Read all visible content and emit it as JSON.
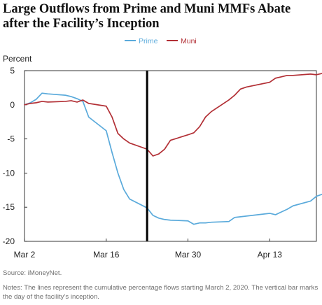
{
  "title_lines": [
    "Large Outflows from Prime and Muni MMFs Abate",
    "after the Facility’s Inception"
  ],
  "source": "Source: iMoneyNet.",
  "notes": "Notes: The lines represent the cumulative percentage flows starting March 2, 2020. The vertical bar marks the day of the facility’s inception.",
  "chart_data": {
    "type": "line",
    "title": "Large Outflows from Prime and Muni MMFs Abate after the Facility’s Inception",
    "xlabel": "",
    "ylabel": "Percent",
    "ylim": [
      -20,
      5
    ],
    "yticks": [
      5,
      0,
      -5,
      -10,
      -15,
      -20
    ],
    "xlim": [
      "2020-03-02",
      "2020-04-21"
    ],
    "xticks": [
      {
        "label": "Mar 2",
        "date": "2020-03-02"
      },
      {
        "label": "Mar 16",
        "date": "2020-03-16"
      },
      {
        "label": "Mar 30",
        "date": "2020-03-30"
      },
      {
        "label": "Apr 13",
        "date": "2020-04-13"
      }
    ],
    "grid": false,
    "legend_position": "top-center",
    "vertical_marker": {
      "date": "2020-03-23",
      "color": "#000000"
    },
    "series": [
      {
        "name": "Prime",
        "color": "#5aaadb",
        "points": [
          [
            "2020-03-02",
            0.0
          ],
          [
            "2020-03-03",
            0.3
          ],
          [
            "2020-03-04",
            0.8
          ],
          [
            "2020-03-05",
            1.7
          ],
          [
            "2020-03-06",
            1.6
          ],
          [
            "2020-03-09",
            1.4
          ],
          [
            "2020-03-10",
            1.2
          ],
          [
            "2020-03-11",
            0.9
          ],
          [
            "2020-03-12",
            0.5
          ],
          [
            "2020-03-13",
            -1.8
          ],
          [
            "2020-03-16",
            -3.8
          ],
          [
            "2020-03-17",
            -7.0
          ],
          [
            "2020-03-18",
            -10.0
          ],
          [
            "2020-03-19",
            -12.4
          ],
          [
            "2020-03-20",
            -13.8
          ],
          [
            "2020-03-23",
            -15.1
          ],
          [
            "2020-03-24",
            -16.2
          ],
          [
            "2020-03-25",
            -16.6
          ],
          [
            "2020-03-26",
            -16.8
          ],
          [
            "2020-03-27",
            -16.9
          ],
          [
            "2020-03-30",
            -17.0
          ],
          [
            "2020-03-31",
            -17.5
          ],
          [
            "2020-04-01",
            -17.3
          ],
          [
            "2020-04-02",
            -17.3
          ],
          [
            "2020-04-03",
            -17.2
          ],
          [
            "2020-04-06",
            -17.1
          ],
          [
            "2020-04-07",
            -16.5
          ],
          [
            "2020-04-08",
            -16.4
          ],
          [
            "2020-04-09",
            -16.3
          ],
          [
            "2020-04-13",
            -15.9
          ],
          [
            "2020-04-14",
            -16.1
          ],
          [
            "2020-04-15",
            -15.7
          ],
          [
            "2020-04-16",
            -15.3
          ],
          [
            "2020-04-17",
            -14.8
          ],
          [
            "2020-04-20",
            -14.1
          ],
          [
            "2020-04-21",
            -13.4
          ],
          [
            "2020-04-22",
            -13.1
          ]
        ]
      },
      {
        "name": "Muni",
        "color": "#b22f35",
        "points": [
          [
            "2020-03-02",
            0.0
          ],
          [
            "2020-03-03",
            0.2
          ],
          [
            "2020-03-04",
            0.3
          ],
          [
            "2020-03-05",
            0.5
          ],
          [
            "2020-03-06",
            0.4
          ],
          [
            "2020-03-09",
            0.5
          ],
          [
            "2020-03-10",
            0.6
          ],
          [
            "2020-03-11",
            0.4
          ],
          [
            "2020-03-12",
            0.7
          ],
          [
            "2020-03-13",
            0.2
          ],
          [
            "2020-03-16",
            -0.2
          ],
          [
            "2020-03-17",
            -1.8
          ],
          [
            "2020-03-18",
            -4.2
          ],
          [
            "2020-03-19",
            -5.0
          ],
          [
            "2020-03-20",
            -5.6
          ],
          [
            "2020-03-23",
            -6.5
          ],
          [
            "2020-03-24",
            -7.5
          ],
          [
            "2020-03-25",
            -7.2
          ],
          [
            "2020-03-26",
            -6.5
          ],
          [
            "2020-03-27",
            -5.2
          ],
          [
            "2020-03-30",
            -4.4
          ],
          [
            "2020-03-31",
            -4.1
          ],
          [
            "2020-04-01",
            -3.2
          ],
          [
            "2020-04-02",
            -1.8
          ],
          [
            "2020-04-03",
            -1.0
          ],
          [
            "2020-04-06",
            0.7
          ],
          [
            "2020-04-07",
            1.4
          ],
          [
            "2020-04-08",
            2.3
          ],
          [
            "2020-04-09",
            2.6
          ],
          [
            "2020-04-13",
            3.3
          ],
          [
            "2020-04-14",
            3.9
          ],
          [
            "2020-04-15",
            4.1
          ],
          [
            "2020-04-16",
            4.3
          ],
          [
            "2020-04-17",
            4.3
          ],
          [
            "2020-04-20",
            4.5
          ],
          [
            "2020-04-21",
            4.4
          ],
          [
            "2020-04-22",
            4.6
          ]
        ]
      }
    ]
  }
}
